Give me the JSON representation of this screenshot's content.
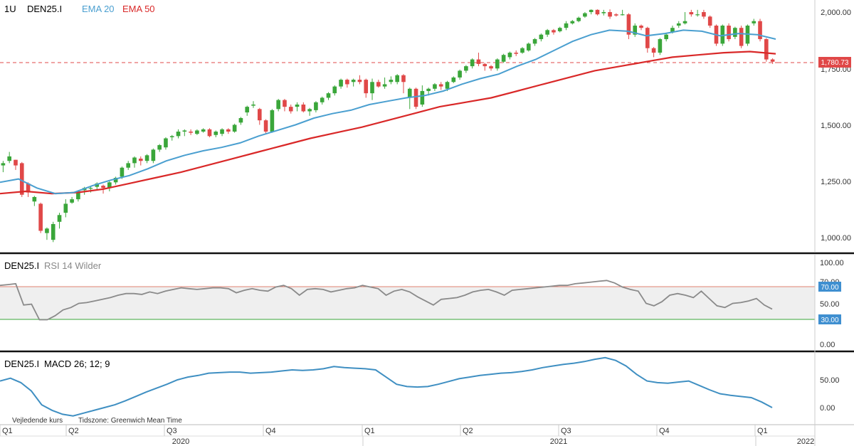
{
  "header": {
    "interval": "1U",
    "symbol": "DEN25.I",
    "ema20_label": "EMA 20",
    "ema50_label": "EMA 50"
  },
  "colors": {
    "up": "#3aa63a",
    "down": "#e04848",
    "ema20": "#4a9fd0",
    "ema50": "#d92828",
    "rsi": "#8a8a8a",
    "macd": "#3f8fc2",
    "panel_border": "#111111",
    "rsi_band": "#efefef",
    "rsi_upper": "#e08070",
    "rsi_lower": "#3aa63a",
    "badge": "#3f8fd0"
  },
  "price_panel": {
    "current_price_label": "1,780.73",
    "y_ticks": [
      "2,000.00",
      "1,750.00",
      "1,500.00",
      "1,250.00",
      "1,000.00"
    ]
  },
  "rsi_panel": {
    "title_symbol": "DEN25.I",
    "title_indicator": "RSI 14 Wilder",
    "y_ticks": [
      "100.00",
      "70.00",
      "50.00",
      "30.00",
      "0.00"
    ],
    "upper_badge": "70.00",
    "lower_badge": "30.00"
  },
  "macd_panel": {
    "title_symbol": "DEN25.I",
    "title_indicator": "MACD 26; 12; 9",
    "y_ticks": [
      "50.00",
      "0.00"
    ]
  },
  "footer": {
    "note": "Vejledende kurs",
    "timezone": "Tidszone: Greenwich Mean Time"
  },
  "x_axis": {
    "quarters": [
      "Q1",
      "Q2",
      "Q3",
      "Q4",
      "Q1",
      "Q2",
      "Q3",
      "Q4",
      "Q1"
    ],
    "years": [
      "2020",
      "2021",
      "2022"
    ]
  },
  "chart_data": [
    {
      "type": "candlestick",
      "title": "DEN25.I",
      "interval": "1U",
      "ylim": [
        950,
        2010
      ],
      "candles": [
        [
          1320,
          1330,
          1290,
          1340
        ],
        [
          1340,
          1360,
          1330,
          1380
        ],
        [
          1345,
          1320,
          1300,
          1345
        ],
        [
          1330,
          1190,
          1180,
          1335
        ],
        [
          1240,
          1200,
          1180,
          1245
        ],
        [
          1160,
          1180,
          1140,
          1185
        ],
        [
          1150,
          1030,
          1020,
          1155
        ],
        [
          1020,
          1040,
          990,
          1045
        ],
        [
          990,
          1060,
          980,
          1070
        ],
        [
          1070,
          1100,
          1040,
          1110
        ],
        [
          1110,
          1150,
          1090,
          1170
        ],
        [
          1155,
          1170,
          1150,
          1180
        ],
        [
          1170,
          1205,
          1160,
          1210
        ],
        [
          1210,
          1220,
          1190,
          1225
        ],
        [
          1220,
          1220,
          1200,
          1225
        ],
        [
          1225,
          1240,
          1210,
          1245
        ],
        [
          1230,
          1220,
          1195,
          1235
        ],
        [
          1220,
          1245,
          1205,
          1250
        ],
        [
          1245,
          1265,
          1235,
          1270
        ],
        [
          1270,
          1310,
          1260,
          1315
        ],
        [
          1310,
          1330,
          1300,
          1340
        ],
        [
          1330,
          1355,
          1310,
          1360
        ],
        [
          1350,
          1340,
          1320,
          1360
        ],
        [
          1340,
          1365,
          1330,
          1370
        ],
        [
          1340,
          1390,
          1330,
          1395
        ],
        [
          1390,
          1410,
          1380,
          1415
        ],
        [
          1400,
          1440,
          1390,
          1445
        ],
        [
          1445,
          1450,
          1430,
          1455
        ],
        [
          1450,
          1470,
          1440,
          1480
        ],
        [
          1470,
          1475,
          1450,
          1480
        ],
        [
          1470,
          1465,
          1455,
          1480
        ],
        [
          1460,
          1475,
          1455,
          1480
        ],
        [
          1470,
          1480,
          1465,
          1485
        ],
        [
          1480,
          1450,
          1445,
          1485
        ],
        [
          1455,
          1470,
          1445,
          1475
        ],
        [
          1460,
          1480,
          1450,
          1485
        ],
        [
          1480,
          1470,
          1460,
          1485
        ],
        [
          1470,
          1500,
          1465,
          1505
        ],
        [
          1510,
          1530,
          1500,
          1535
        ],
        [
          1555,
          1580,
          1540,
          1585
        ],
        [
          1585,
          1590,
          1575,
          1605
        ],
        [
          1570,
          1520,
          1500,
          1575
        ],
        [
          1520,
          1470,
          1460,
          1525
        ],
        [
          1470,
          1565,
          1465,
          1570
        ],
        [
          1570,
          1610,
          1560,
          1615
        ],
        [
          1610,
          1580,
          1560,
          1615
        ],
        [
          1580,
          1560,
          1550,
          1590
        ],
        [
          1580,
          1590,
          1560,
          1600
        ],
        [
          1590,
          1560,
          1555,
          1600
        ],
        [
          1560,
          1570,
          1540,
          1575
        ],
        [
          1565,
          1600,
          1555,
          1605
        ],
        [
          1600,
          1620,
          1590,
          1625
        ],
        [
          1620,
          1640,
          1610,
          1645
        ],
        [
          1640,
          1670,
          1630,
          1675
        ],
        [
          1670,
          1700,
          1660,
          1705
        ],
        [
          1700,
          1680,
          1665,
          1705
        ],
        [
          1690,
          1700,
          1670,
          1705
        ],
        [
          1700,
          1690,
          1680,
          1720
        ],
        [
          1700,
          1640,
          1620,
          1705
        ],
        [
          1640,
          1690,
          1610,
          1705
        ],
        [
          1690,
          1670,
          1665,
          1700
        ],
        [
          1670,
          1680,
          1660,
          1710
        ],
        [
          1690,
          1700,
          1680,
          1715
        ],
        [
          1690,
          1720,
          1680,
          1725
        ],
        [
          1720,
          1690,
          1640,
          1725
        ],
        [
          1620,
          1660,
          1570,
          1665
        ],
        [
          1660,
          1580,
          1570,
          1665
        ],
        [
          1590,
          1650,
          1580,
          1675
        ],
        [
          1650,
          1660,
          1630,
          1665
        ],
        [
          1660,
          1680,
          1650,
          1685
        ],
        [
          1680,
          1670,
          1655,
          1690
        ],
        [
          1660,
          1690,
          1650,
          1695
        ],
        [
          1690,
          1710,
          1685,
          1715
        ],
        [
          1710,
          1740,
          1700,
          1745
        ],
        [
          1740,
          1760,
          1730,
          1765
        ],
        [
          1760,
          1790,
          1750,
          1795
        ],
        [
          1790,
          1770,
          1760,
          1820
        ],
        [
          1770,
          1760,
          1740,
          1775
        ],
        [
          1760,
          1750,
          1740,
          1765
        ],
        [
          1750,
          1790,
          1740,
          1795
        ],
        [
          1780,
          1810,
          1775,
          1815
        ],
        [
          1800,
          1820,
          1790,
          1825
        ],
        [
          1820,
          1815,
          1805,
          1830
        ],
        [
          1820,
          1840,
          1815,
          1845
        ],
        [
          1830,
          1860,
          1825,
          1865
        ],
        [
          1860,
          1880,
          1850,
          1885
        ],
        [
          1880,
          1900,
          1870,
          1905
        ],
        [
          1900,
          1920,
          1890,
          1925
        ],
        [
          1920,
          1910,
          1900,
          1925
        ],
        [
          1915,
          1930,
          1910,
          1935
        ],
        [
          1930,
          1950,
          1920,
          1960
        ],
        [
          1950,
          1960,
          1945,
          1965
        ],
        [
          1960,
          1975,
          1955,
          1980
        ],
        [
          1980,
          1995,
          1975,
          2000
        ],
        [
          2000,
          2010,
          1990,
          2012
        ],
        [
          2010,
          1990,
          1985,
          2012
        ],
        [
          1995,
          2000,
          1985,
          2010
        ],
        [
          2000,
          1980,
          1970,
          2012
        ],
        [
          1990,
          1985,
          1980,
          1995
        ],
        [
          1990,
          1990,
          1985,
          2010
        ],
        [
          1990,
          1900,
          1880,
          1995
        ],
        [
          1900,
          1940,
          1890,
          1950
        ],
        [
          1940,
          1930,
          1920,
          1945
        ],
        [
          1930,
          1840,
          1820,
          1935
        ],
        [
          1840,
          1820,
          1800,
          1845
        ],
        [
          1820,
          1880,
          1810,
          1885
        ],
        [
          1880,
          1900,
          1870,
          1905
        ],
        [
          1910,
          1930,
          1905,
          1940
        ],
        [
          1940,
          1950,
          1930,
          1960
        ],
        [
          1950,
          1960,
          1945,
          2000
        ],
        [
          2000,
          1990,
          1980,
          2010
        ],
        [
          1990,
          1990,
          1980,
          2010
        ],
        [
          2000,
          1980,
          1970,
          2010
        ],
        [
          1980,
          1940,
          1930,
          1985
        ],
        [
          1940,
          1860,
          1850,
          1945
        ],
        [
          1860,
          1940,
          1850,
          1945
        ],
        [
          1940,
          1880,
          1870,
          1950
        ],
        [
          1890,
          1930,
          1880,
          1935
        ],
        [
          1930,
          1850,
          1840,
          1940
        ],
        [
          1860,
          1940,
          1850,
          1945
        ],
        [
          1950,
          1960,
          1940,
          1970
        ],
        [
          1960,
          1880,
          1870,
          1970
        ],
        [
          1880,
          1790,
          1780,
          1885
        ],
        [
          1790,
          1780,
          1770,
          1795
        ]
      ],
      "ema20": [
        [
          0,
          1245
        ],
        [
          5,
          1260
        ],
        [
          10,
          1220
        ],
        [
          15,
          1195
        ],
        [
          20,
          1200
        ],
        [
          25,
          1230
        ],
        [
          30,
          1255
        ],
        [
          35,
          1275
        ],
        [
          40,
          1305
        ],
        [
          45,
          1340
        ],
        [
          50,
          1365
        ],
        [
          55,
          1385
        ],
        [
          60,
          1400
        ],
        [
          65,
          1420
        ],
        [
          70,
          1450
        ],
        [
          75,
          1475
        ],
        [
          80,
          1500
        ],
        [
          85,
          1530
        ],
        [
          90,
          1550
        ],
        [
          95,
          1565
        ],
        [
          100,
          1590
        ],
        [
          105,
          1605
        ],
        [
          110,
          1620
        ],
        [
          115,
          1630
        ],
        [
          120,
          1650
        ],
        [
          125,
          1680
        ],
        [
          130,
          1705
        ],
        [
          135,
          1725
        ],
        [
          140,
          1760
        ],
        [
          145,
          1790
        ],
        [
          150,
          1830
        ],
        [
          155,
          1870
        ],
        [
          160,
          1900
        ],
        [
          165,
          1920
        ],
        [
          170,
          1915
        ],
        [
          175,
          1895
        ],
        [
          180,
          1905
        ],
        [
          185,
          1920
        ],
        [
          190,
          1915
        ],
        [
          195,
          1895
        ],
        [
          200,
          1905
        ],
        [
          205,
          1900
        ],
        [
          210,
          1880
        ]
      ],
      "ema50": [
        [
          0,
          1195
        ],
        [
          10,
          1205
        ],
        [
          20,
          1195
        ],
        [
          30,
          1200
        ],
        [
          40,
          1215
        ],
        [
          50,
          1240
        ],
        [
          60,
          1265
        ],
        [
          70,
          1290
        ],
        [
          80,
          1320
        ],
        [
          90,
          1350
        ],
        [
          100,
          1380
        ],
        [
          110,
          1410
        ],
        [
          120,
          1440
        ],
        [
          130,
          1465
        ],
        [
          140,
          1490
        ],
        [
          150,
          1520
        ],
        [
          160,
          1550
        ],
        [
          170,
          1580
        ],
        [
          180,
          1600
        ],
        [
          190,
          1620
        ],
        [
          200,
          1650
        ],
        [
          210,
          1680
        ],
        [
          220,
          1710
        ],
        [
          230,
          1740
        ],
        [
          240,
          1760
        ],
        [
          250,
          1780
        ],
        [
          260,
          1800
        ],
        [
          270,
          1810
        ],
        [
          280,
          1820
        ],
        [
          290,
          1825
        ],
        [
          300,
          1815
        ]
      ]
    },
    {
      "type": "line",
      "title": "RSI 14 Wilder",
      "ylim": [
        0,
        100
      ],
      "levels": [
        70,
        30
      ],
      "values": [
        72,
        73,
        74,
        48,
        49,
        30,
        30,
        35,
        42,
        45,
        50,
        51,
        53,
        55,
        57,
        60,
        62,
        62,
        61,
        64,
        62,
        65,
        67,
        69,
        68,
        67,
        68,
        69,
        69,
        68,
        63,
        66,
        68,
        66,
        65,
        70,
        72,
        68,
        60,
        67,
        68,
        67,
        64,
        66,
        68,
        69,
        72,
        70,
        68,
        60,
        65,
        67,
        64,
        58,
        53,
        48,
        55,
        56,
        57,
        60,
        64,
        66,
        67,
        64,
        60,
        66,
        67,
        68,
        69,
        70,
        71,
        72,
        72,
        74,
        75,
        76,
        77,
        78,
        75,
        70,
        67,
        65,
        50,
        47,
        52,
        60,
        62,
        60,
        57,
        65,
        56,
        47,
        45,
        50,
        51,
        53,
        56,
        48,
        43
      ]
    },
    {
      "type": "line",
      "title": "MACD 26; 12; 9",
      "ylim": [
        -20,
        95
      ],
      "values": [
        48,
        53,
        45,
        30,
        5,
        -5,
        -12,
        -15,
        -10,
        -5,
        0,
        5,
        12,
        20,
        28,
        35,
        42,
        50,
        55,
        58,
        62,
        63,
        64,
        64,
        62,
        63,
        64,
        66,
        68,
        67,
        68,
        70,
        74,
        72,
        71,
        70,
        68,
        55,
        42,
        38,
        37,
        38,
        42,
        47,
        52,
        55,
        58,
        60,
        62,
        63,
        65,
        68,
        72,
        75,
        78,
        80,
        83,
        87,
        90,
        85,
        75,
        60,
        48,
        45,
        44,
        46,
        48,
        40,
        32,
        25,
        22,
        20,
        18,
        10,
        0
      ]
    }
  ]
}
